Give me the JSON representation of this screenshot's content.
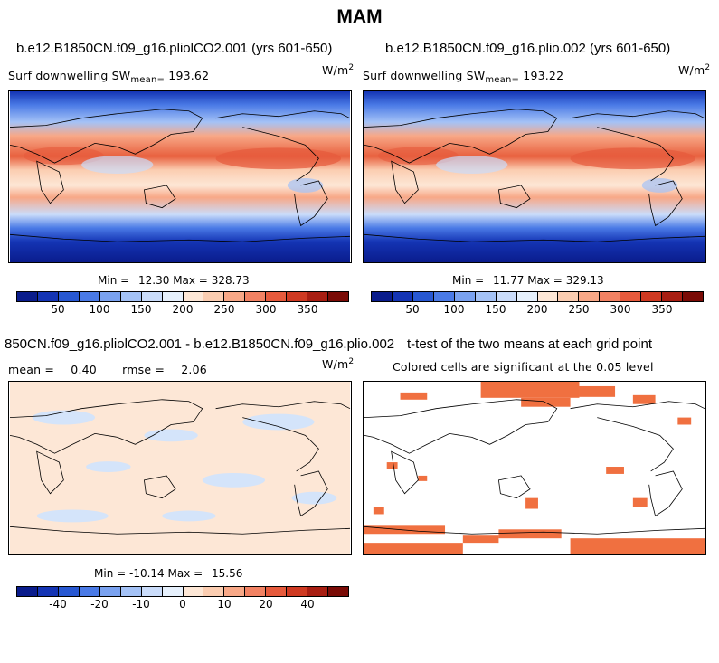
{
  "figure": {
    "title": "MAM"
  },
  "panels": {
    "p1": {
      "title": "b.e12.B1850CN.f09_g16.pliolCO2.001 (yrs 601-650)",
      "left_label": "Surf downwelling SW",
      "mean_prefix": "mean=",
      "mean_value": "193.62",
      "units_base": "W/m",
      "units_exp": "2",
      "min_label": "Min =",
      "min_value": "12.30",
      "max_label": "Max =",
      "max_value": "328.73"
    },
    "p2": {
      "title": "b.e12.B1850CN.f09_g16.plio.002 (yrs 601-650)",
      "left_label": "Surf downwelling SW",
      "mean_prefix": "mean=",
      "mean_value": "193.22",
      "units_base": "W/m",
      "units_exp": "2",
      "min_label": "Min =",
      "min_value": "11.77",
      "max_label": "Max =",
      "max_value": "329.13"
    },
    "p3": {
      "title": "850CN.f09_g16.pliolCO2.001 - b.e12.B1850CN.f09_g16.plio.002",
      "mean_label": "mean =",
      "mean_value": "0.40",
      "rmse_label": "rmse =",
      "rmse_value": "2.06",
      "units_base": "W/m",
      "units_exp": "2",
      "min_label": "Min =",
      "min_value": "-10.14",
      "max_label": "Max =",
      "max_value": "15.56"
    },
    "p4": {
      "title": "t-test of the two means at each grid point",
      "subtitle": "Colored cells are significant at the 0.05 level"
    }
  },
  "colorbars": {
    "abs": {
      "colors": [
        "#0a1c8c",
        "#1434b4",
        "#2858d2",
        "#4a7ae6",
        "#7aa2f0",
        "#a4c2f6",
        "#cadcfa",
        "#e6f0fc",
        "#fde7d6",
        "#fbcdb1",
        "#f8a887",
        "#f28263",
        "#e65a3c",
        "#cf3a22",
        "#a81e12",
        "#7a0b06"
      ],
      "ticks": [
        "50",
        "100",
        "150",
        "200",
        "250",
        "300",
        "350"
      ]
    },
    "diff": {
      "colors": [
        "#0a1c8c",
        "#1434b4",
        "#2858d2",
        "#4a7ae6",
        "#7aa2f0",
        "#a4c2f6",
        "#cadcfa",
        "#e6f0fc",
        "#fde7d6",
        "#fbcdb1",
        "#f8a887",
        "#f28263",
        "#e65a3c",
        "#cf3a22",
        "#a81e12",
        "#7a0b06"
      ],
      "ticks": [
        "-40",
        "-20",
        "-10",
        "0",
        "10",
        "20",
        "40"
      ]
    }
  },
  "map_colors": {
    "ocean_dark": "#0d2496",
    "ocean_blue": "#3c6ad8",
    "light_blue": "#a8c6f4",
    "pale": "#fde7d6",
    "salmon": "#f8a887",
    "red": "#e8603e",
    "diff_bg": "#fde7d6",
    "diff_blue": "#d4e4fa",
    "sig": "#f07040"
  }
}
